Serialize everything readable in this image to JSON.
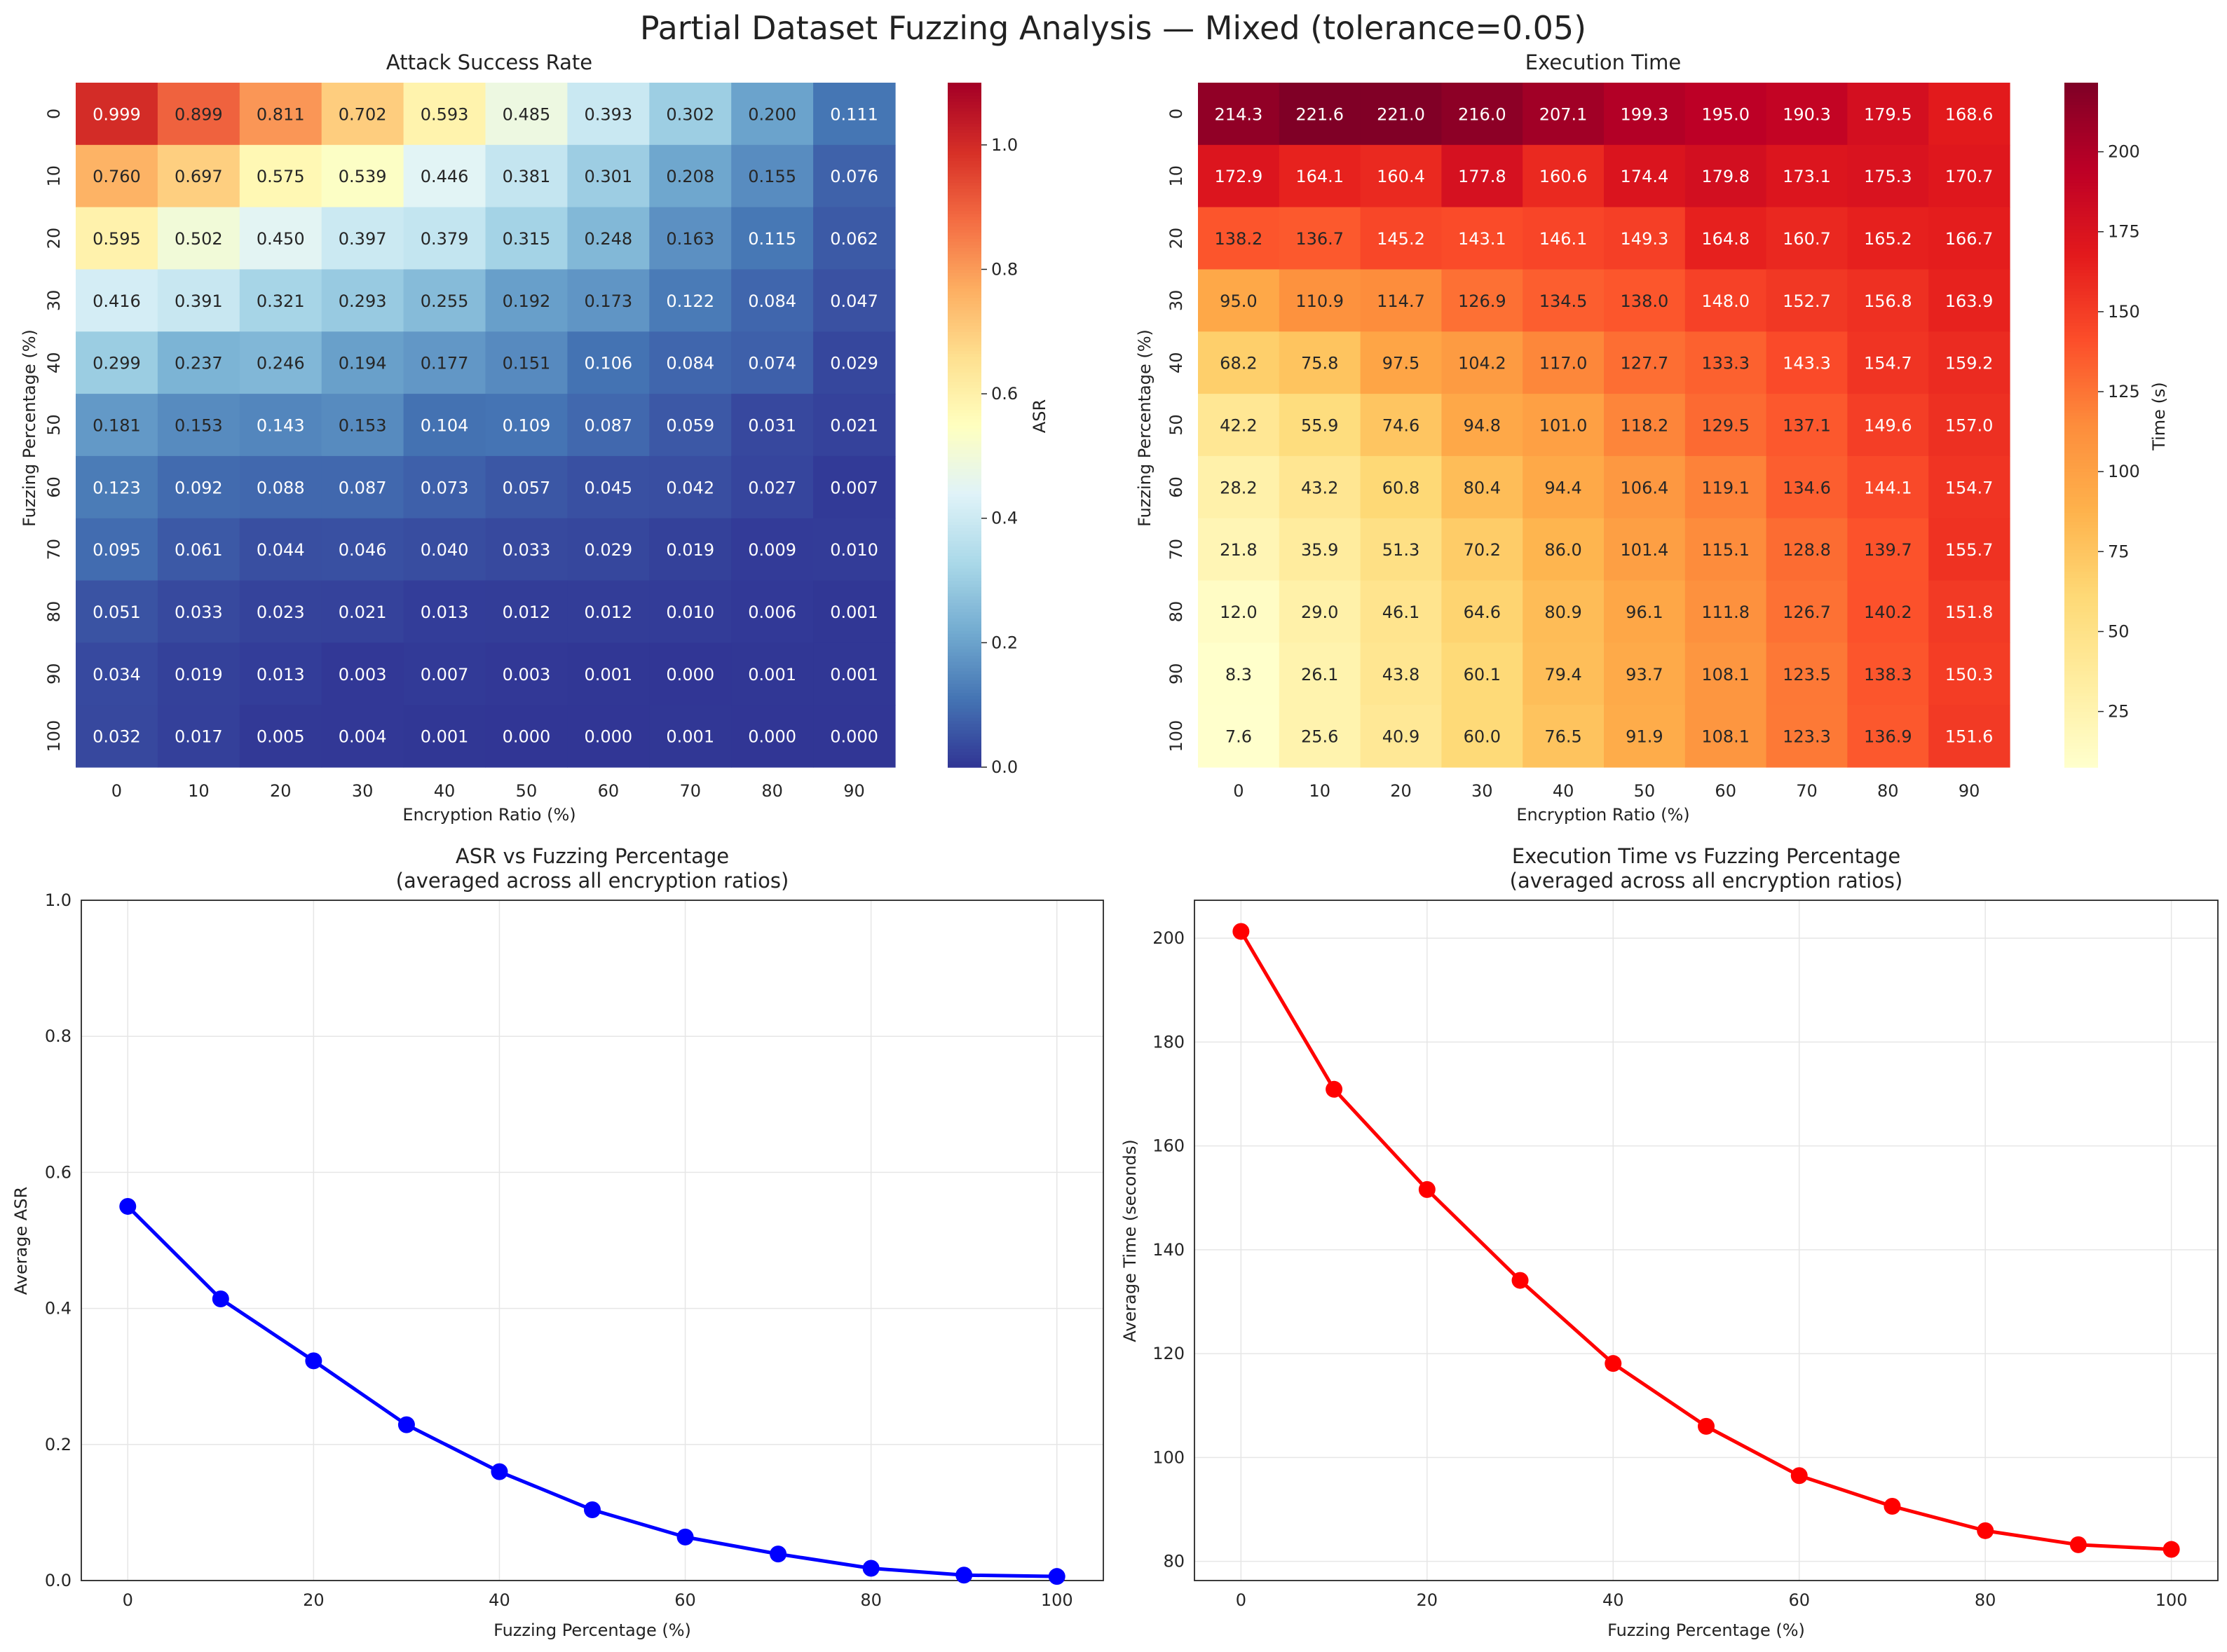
{
  "figure": {
    "title": "Partial Dataset Fuzzing Analysis — Mixed (tolerance=0.05)"
  },
  "chart_data": [
    {
      "type": "heatmap",
      "title": "Attack Success Rate",
      "xlabel": "Encryption Ratio (%)",
      "ylabel": "Fuzzing Percentage (%)",
      "x_categories": [
        "0",
        "10",
        "20",
        "30",
        "40",
        "50",
        "60",
        "70",
        "80",
        "90"
      ],
      "y_categories": [
        "0",
        "10",
        "20",
        "30",
        "40",
        "50",
        "60",
        "70",
        "80",
        "90",
        "100"
      ],
      "values": [
        [
          0.999,
          0.899,
          0.811,
          0.702,
          0.593,
          0.485,
          0.393,
          0.302,
          0.2,
          0.111
        ],
        [
          0.76,
          0.697,
          0.575,
          0.539,
          0.446,
          0.381,
          0.301,
          0.208,
          0.155,
          0.076
        ],
        [
          0.595,
          0.502,
          0.45,
          0.397,
          0.379,
          0.315,
          0.248,
          0.163,
          0.115,
          0.062
        ],
        [
          0.416,
          0.391,
          0.321,
          0.293,
          0.255,
          0.192,
          0.173,
          0.122,
          0.084,
          0.047
        ],
        [
          0.299,
          0.237,
          0.246,
          0.194,
          0.177,
          0.151,
          0.106,
          0.084,
          0.074,
          0.029
        ],
        [
          0.181,
          0.153,
          0.143,
          0.153,
          0.104,
          0.109,
          0.087,
          0.059,
          0.031,
          0.021
        ],
        [
          0.123,
          0.092,
          0.088,
          0.087,
          0.073,
          0.057,
          0.045,
          0.042,
          0.027,
          0.007
        ],
        [
          0.095,
          0.061,
          0.044,
          0.046,
          0.04,
          0.033,
          0.029,
          0.019,
          0.009,
          0.01
        ],
        [
          0.051,
          0.033,
          0.023,
          0.021,
          0.013,
          0.012,
          0.012,
          0.01,
          0.006,
          0.001
        ],
        [
          0.034,
          0.019,
          0.013,
          0.003,
          0.007,
          0.003,
          0.001,
          0.0,
          0.001,
          0.001
        ],
        [
          0.032,
          0.017,
          0.005,
          0.004,
          0.001,
          0.0,
          0.0,
          0.001,
          0.0,
          0.0
        ]
      ],
      "decimals": 3,
      "colormap": "RdYlBu_r",
      "colorbar": {
        "label": "ASR",
        "range": [
          0,
          1.1
        ],
        "ticks": [
          0.0,
          0.2,
          0.4,
          0.6,
          0.8,
          1.0
        ],
        "tick_labels": [
          "0.0",
          "0.2",
          "0.4",
          "0.6",
          "0.8",
          "1.0"
        ]
      }
    },
    {
      "type": "heatmap",
      "title": "Execution Time",
      "xlabel": "Encryption Ratio (%)",
      "ylabel": "Fuzzing Percentage (%)",
      "x_categories": [
        "0",
        "10",
        "20",
        "30",
        "40",
        "50",
        "60",
        "70",
        "80",
        "90"
      ],
      "y_categories": [
        "0",
        "10",
        "20",
        "30",
        "40",
        "50",
        "60",
        "70",
        "80",
        "90",
        "100"
      ],
      "values": [
        [
          214.3,
          221.6,
          221.0,
          216.0,
          207.1,
          199.3,
          195.0,
          190.3,
          179.5,
          168.6
        ],
        [
          172.9,
          164.1,
          160.4,
          177.8,
          160.6,
          174.4,
          179.8,
          173.1,
          175.3,
          170.7
        ],
        [
          138.2,
          136.7,
          145.2,
          143.1,
          146.1,
          149.3,
          164.8,
          160.7,
          165.2,
          166.7
        ],
        [
          95.0,
          110.9,
          114.7,
          126.9,
          134.5,
          138.0,
          148.0,
          152.7,
          156.8,
          163.9
        ],
        [
          68.2,
          75.8,
          97.5,
          104.2,
          117.0,
          127.7,
          133.3,
          143.3,
          154.7,
          159.2
        ],
        [
          42.2,
          55.9,
          74.6,
          94.8,
          101.0,
          118.2,
          129.5,
          137.1,
          149.6,
          157.0
        ],
        [
          28.2,
          43.2,
          60.8,
          80.4,
          94.4,
          106.4,
          119.1,
          134.6,
          144.1,
          154.7
        ],
        [
          21.8,
          35.9,
          51.3,
          70.2,
          86.0,
          101.4,
          115.1,
          128.8,
          139.7,
          155.7
        ],
        [
          12.0,
          29.0,
          46.1,
          64.6,
          80.9,
          96.1,
          111.8,
          126.7,
          140.2,
          151.8
        ],
        [
          8.3,
          26.1,
          43.8,
          60.1,
          79.4,
          93.7,
          108.1,
          123.5,
          138.3,
          150.3
        ],
        [
          7.6,
          25.6,
          40.9,
          60.0,
          76.5,
          91.9,
          108.1,
          123.3,
          136.9,
          151.6
        ]
      ],
      "decimals": 1,
      "colormap": "YlOrRd",
      "colorbar": {
        "label": "Time (s)",
        "range": [
          7.6,
          221.6
        ],
        "ticks": [
          25,
          50,
          75,
          100,
          125,
          150,
          175,
          200
        ],
        "tick_labels": [
          "25",
          "50",
          "75",
          "100",
          "125",
          "150",
          "175",
          "200"
        ]
      }
    },
    {
      "type": "line",
      "title": "ASR vs Fuzzing Percentage",
      "subtitle": "(averaged across all encryption ratios)",
      "xlabel": "Fuzzing Percentage (%)",
      "ylabel": "Average ASR",
      "x": [
        0,
        10,
        20,
        30,
        40,
        50,
        60,
        70,
        80,
        90,
        100
      ],
      "y": [
        0.55,
        0.414,
        0.323,
        0.229,
        0.16,
        0.104,
        0.064,
        0.039,
        0.018,
        0.008,
        0.006
      ],
      "xlim": [
        -5,
        105
      ],
      "ylim": [
        0,
        1.0
      ],
      "xticks": [
        0,
        20,
        40,
        60,
        80,
        100
      ],
      "xtick_labels": [
        "0",
        "20",
        "40",
        "60",
        "80",
        "100"
      ],
      "yticks": [
        0.0,
        0.2,
        0.4,
        0.6,
        0.8,
        1.0
      ],
      "ytick_labels": [
        "0.0",
        "0.2",
        "0.4",
        "0.6",
        "0.8",
        "1.0"
      ],
      "grid": true,
      "color": "#0000ff",
      "marker": "circle"
    },
    {
      "type": "line",
      "title": "Execution Time vs Fuzzing Percentage",
      "subtitle": "(averaged across all encryption ratios)",
      "xlabel": "Fuzzing Percentage (%)",
      "ylabel": "Average Time (seconds)",
      "x": [
        0,
        10,
        20,
        30,
        40,
        50,
        60,
        70,
        80,
        90,
        100
      ],
      "y": [
        201.3,
        170.9,
        151.6,
        134.1,
        118.1,
        106.0,
        96.5,
        90.6,
        85.9,
        83.2,
        82.3
      ],
      "xlim": [
        -5,
        105
      ],
      "ylim": [
        76.3,
        207.3
      ],
      "xticks": [
        0,
        20,
        40,
        60,
        80,
        100
      ],
      "xtick_labels": [
        "0",
        "20",
        "40",
        "60",
        "80",
        "100"
      ],
      "yticks": [
        80,
        100,
        120,
        140,
        160,
        180,
        200
      ],
      "ytick_labels": [
        "80",
        "100",
        "120",
        "140",
        "160",
        "180",
        "200"
      ],
      "grid": true,
      "color": "#ff0000",
      "marker": "circle"
    }
  ]
}
